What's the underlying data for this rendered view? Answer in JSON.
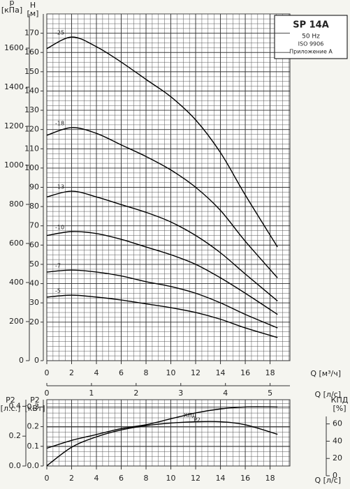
{
  "chart_data": [
    {
      "type": "line",
      "y_title": "H",
      "y_unit": "[м]",
      "y2_title": "p",
      "y2_unit": "[кПа]",
      "x_label": "Q [м³/ч]",
      "x2_label": "Q [л/с]",
      "box": [
        "SP 14A",
        "50 Hz",
        "ISO 9906",
        "Приложение A"
      ],
      "x": [
        0,
        2,
        4,
        6,
        8,
        10,
        12,
        14,
        16,
        18.6
      ],
      "xlim": [
        0,
        19.6
      ],
      "xticks": [
        0,
        2,
        4,
        6,
        8,
        10,
        12,
        14,
        16,
        18
      ],
      "x2lim": [
        0,
        5.444
      ],
      "x2ticks": [
        0,
        1,
        2,
        3,
        4,
        5
      ],
      "ylim": [
        0,
        180
      ],
      "yticks": [
        0,
        20,
        30,
        40,
        50,
        60,
        70,
        80,
        90,
        100,
        110,
        120,
        130,
        140,
        150,
        160,
        170
      ],
      "y2lim": [
        0,
        1775
      ],
      "y2ticks": [
        0,
        200,
        400,
        600,
        800,
        1000,
        1200,
        1400,
        1600
      ],
      "color": "#000000",
      "series": [
        {
          "name": "-25",
          "values": [
            162,
            168,
            163,
            155,
            146,
            137,
            125,
            108,
            86,
            59
          ]
        },
        {
          "name": "-18",
          "values": [
            117,
            121,
            118,
            112,
            106,
            99,
            90,
            78,
            62,
            43
          ]
        },
        {
          "name": "-13",
          "values": [
            85,
            88,
            85,
            81,
            77,
            72,
            65,
            56,
            45,
            31
          ]
        },
        {
          "name": "-10",
          "values": [
            65,
            67,
            66,
            63,
            59,
            55,
            50,
            43,
            35,
            24
          ]
        },
        {
          "name": "-7",
          "values": [
            46,
            47,
            46,
            44,
            41,
            38.5,
            35,
            30,
            24,
            17
          ]
        },
        {
          "name": "-5",
          "values": [
            33,
            34,
            33,
            31.5,
            29.5,
            27.5,
            25,
            21.5,
            17,
            12
          ]
        }
      ]
    },
    {
      "type": "line",
      "y_title": "P2",
      "y_unit": "[кВт]",
      "y3_title": "P2",
      "y3_unit": "[л.с.]",
      "y2_title": "КПД",
      "y2_unit": "[%]",
      "x_label": "Q [л/с]",
      "x": [
        0,
        2,
        4,
        6,
        8,
        10,
        12,
        14,
        16,
        18.6
      ],
      "xlim": [
        0,
        19.6
      ],
      "xticks": [
        0,
        2,
        4,
        6,
        8,
        10,
        12,
        14,
        16,
        18
      ],
      "ylim": [
        0,
        0.337
      ],
      "yticks": [
        {
          "value": 0,
          "label": "0.0"
        },
        0.1,
        0.2,
        0.3
      ],
      "y3lim": [
        0,
        0.444
      ],
      "y3ticks": [
        {
          "value": 0,
          "label": "0.0"
        },
        0.2,
        0.4
      ],
      "y2lim": [
        0,
        88
      ],
      "y2ticks": [
        0,
        20,
        40,
        60
      ],
      "color": "#000000",
      "series": [
        {
          "name": "КПД",
          "axis": "y2",
          "values": [
            11.5,
            33,
            45,
            53,
            58,
            61,
            62.5,
            62.5,
            59,
            48
          ]
        },
        {
          "name": "P2",
          "axis": "y",
          "values": [
            0.09,
            0.13,
            0.16,
            0.19,
            0.21,
            0.24,
            0.27,
            0.29,
            0.3,
            0.3
          ]
        }
      ]
    }
  ]
}
